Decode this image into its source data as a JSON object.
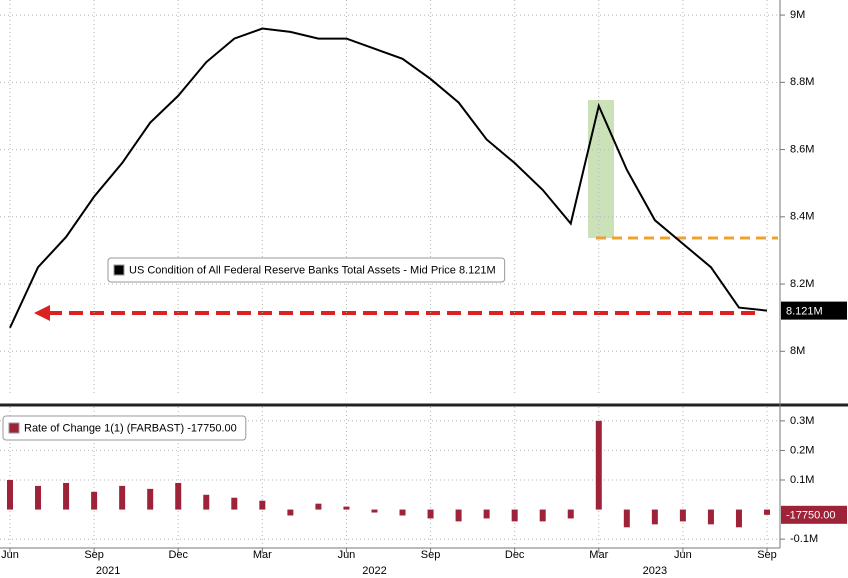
{
  "chart_data": [
    {
      "type": "line",
      "x": [
        "2021-06",
        "2021-07",
        "2021-08",
        "2021-09",
        "2021-10",
        "2021-11",
        "2021-12",
        "2022-01",
        "2022-02",
        "2022-03",
        "2022-04",
        "2022-05",
        "2022-06",
        "2022-07",
        "2022-08",
        "2022-09",
        "2022-10",
        "2022-11",
        "2022-12",
        "2023-01",
        "2023-02",
        "2023-03",
        "2023-04",
        "2023-05",
        "2023-06",
        "2023-07",
        "2023-08",
        "2023-09"
      ],
      "series": [
        {
          "name": "US Condition of All Federal Reserve Banks Total Assets - Mid Price 8.121M",
          "color": "#000000",
          "values": [
            8.07,
            8.25,
            8.34,
            8.46,
            8.56,
            8.68,
            8.76,
            8.86,
            8.93,
            8.96,
            8.95,
            8.93,
            8.93,
            8.9,
            8.87,
            8.81,
            8.74,
            8.63,
            8.56,
            8.48,
            8.38,
            8.73,
            8.54,
            8.39,
            8.32,
            8.25,
            8.13,
            8.121
          ],
          "value_labels": [
            null,
            null,
            null,
            null,
            null,
            null,
            null,
            null,
            null,
            null,
            null,
            null,
            null,
            null,
            null,
            null,
            null,
            null,
            null,
            null,
            null,
            null,
            null,
            null,
            null,
            null,
            null,
            "8.121M"
          ]
        }
      ],
      "xlim": [
        "2021-06",
        "2023-09"
      ],
      "xticks": [
        "2021-06",
        "2021-09",
        "2021-12",
        "2022-03",
        "2022-06",
        "2022-09",
        "2022-12",
        "2023-03",
        "2023-06",
        "2023-09"
      ],
      "ylim": [
        7.87,
        9.03
      ],
      "yticks": [
        {
          "value": 9,
          "label": "9M"
        },
        {
          "value": 8.8,
          "label": "8.8M"
        },
        {
          "value": 8.6,
          "label": "8.6M"
        },
        {
          "value": 8.4,
          "label": "8.4M"
        },
        {
          "value": 8.2,
          "label": "8.2M"
        },
        {
          "value": 8,
          "label": "8M"
        }
      ],
      "grid": true
    },
    {
      "type": "bar",
      "x": [
        "2021-06",
        "2021-07",
        "2021-08",
        "2021-09",
        "2021-10",
        "2021-11",
        "2021-12",
        "2022-01",
        "2022-02",
        "2022-03",
        "2022-04",
        "2022-05",
        "2022-06",
        "2022-07",
        "2022-08",
        "2022-09",
        "2022-10",
        "2022-11",
        "2022-12",
        "2023-01",
        "2023-02",
        "2023-03",
        "2023-04",
        "2023-05",
        "2023-06",
        "2023-07",
        "2023-08",
        "2023-09"
      ],
      "series": [
        {
          "name": "Rate of Change 1(1) (FARBAST) -17750.00",
          "color": "#9e2238",
          "values": [
            0.1,
            0.08,
            0.09,
            0.06,
            0.08,
            0.07,
            0.09,
            0.05,
            0.04,
            0.03,
            -0.02,
            0.02,
            0.01,
            -0.01,
            -0.02,
            -0.03,
            -0.04,
            -0.03,
            -0.04,
            -0.04,
            -0.03,
            0.3,
            -0.06,
            -0.05,
            -0.04,
            -0.05,
            -0.06,
            -0.01775
          ],
          "value_labels": [
            null,
            null,
            null,
            null,
            null,
            null,
            null,
            null,
            null,
            null,
            null,
            null,
            null,
            null,
            null,
            null,
            null,
            null,
            null,
            null,
            null,
            null,
            null,
            null,
            null,
            null,
            null,
            "-17750.00"
          ]
        }
      ],
      "xlim": [
        "2021-06",
        "2023-09"
      ],
      "xticks": [
        {
          "value": "2021-06",
          "label": "Jun"
        },
        {
          "value": "2021-09",
          "label": "Sep"
        },
        {
          "value": "2021-12",
          "label": "Dec"
        },
        {
          "value": "2022-03",
          "label": "Mar"
        },
        {
          "value": "2022-06",
          "label": "Jun"
        },
        {
          "value": "2022-09",
          "label": "Sep"
        },
        {
          "value": "2022-12",
          "label": "Dec"
        },
        {
          "value": "2023-03",
          "label": "Mar"
        },
        {
          "value": "2023-06",
          "label": "Jun"
        },
        {
          "value": "2023-09",
          "label": "Sep"
        }
      ],
      "x_year_labels": [
        "2021",
        "2022",
        "2023"
      ],
      "ylim": [
        -0.13,
        0.33
      ],
      "yticks": [
        {
          "value": 0.3,
          "label": "0.3M"
        },
        {
          "value": 0.2,
          "label": "0.2M"
        },
        {
          "value": 0.1,
          "label": "0.1M"
        },
        {
          "value": -0.1,
          "label": "-0.1M"
        }
      ],
      "grid": true
    }
  ]
}
